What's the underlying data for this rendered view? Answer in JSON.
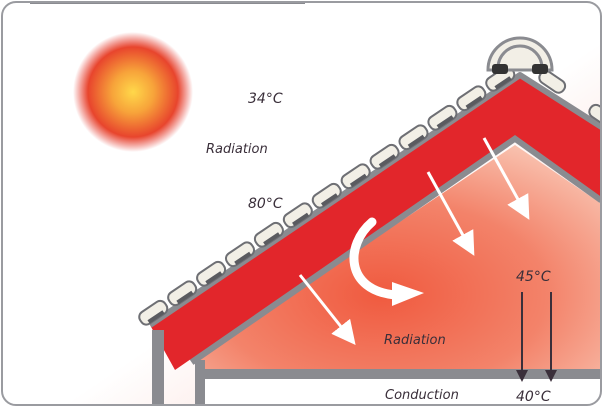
{
  "labels": {
    "temp_sky": "34°C",
    "radiation_sun": "Radiation",
    "temp_roof": "80°C",
    "temp_attic": "45°C",
    "radiation_attic": "Radiation",
    "conduction": "Conduction",
    "temp_ceiling": "40°C"
  },
  "colors": {
    "roof_red": "#e2262b",
    "frame_gray": "#8a8b90",
    "tile_cream": "#f2efe6",
    "sun_core": "#f7a33a",
    "sun_edge": "#e4332b",
    "attic_glow": "#f3836a",
    "border": "#9a9ba0"
  },
  "icons": [
    "sun-icon",
    "ridge-vent-icon",
    "circular-arrow-icon"
  ]
}
